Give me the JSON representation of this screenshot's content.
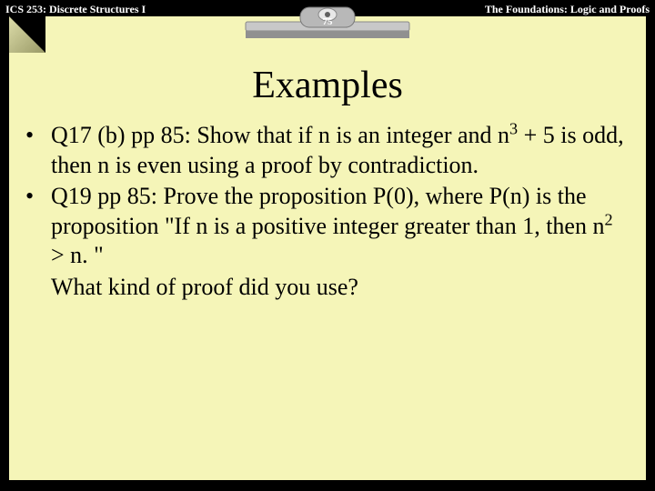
{
  "header": {
    "left": "ICS 253: Discrete Structures I",
    "page": "75",
    "right": "The Foundations: Logic and Proofs"
  },
  "title": "Examples",
  "bullets": [
    {
      "prefix": "Q17 (b) pp 85: ",
      "text_html": "Show that if n is an integer and n<sup>3</sup> + 5 is odd, then n is even using a proof by contradiction."
    },
    {
      "prefix": "Q19 pp 85: ",
      "text_html": "Prove the proposition P(0), where P(n) is the proposition \"If n is a positive integer greater than 1, then n<sup>2</sup> > n. \""
    }
  ],
  "trailing": "What kind of proof did you use?",
  "colors": {
    "background": "#000000",
    "slide_bg": "#f5f5b8",
    "text": "#000000",
    "header_text": "#ffffff"
  },
  "fonts": {
    "title_size_pt": 42,
    "body_size_pt": 26,
    "header_size_pt": 12
  }
}
